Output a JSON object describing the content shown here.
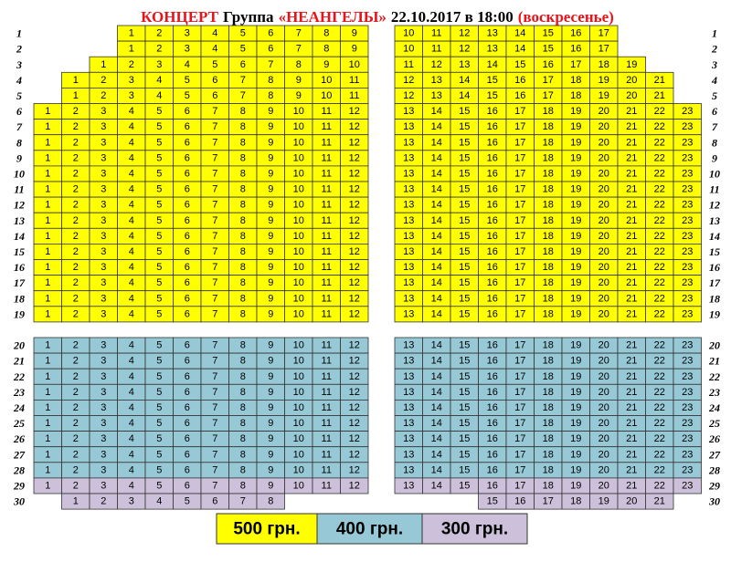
{
  "header": {
    "title": [
      {
        "text": "КОНЦЕРТ",
        "color": "#e8141b"
      },
      {
        "text": "Группа",
        "color": "#000000"
      },
      {
        "text": "«НЕАНГЕЛЫ»",
        "color": "#e8141b"
      },
      {
        "text": "22.10.2017 в 18:00",
        "color": "#000000"
      },
      {
        "text": "(воскресенье)",
        "color": "#e8141b"
      }
    ]
  },
  "rows": [
    {
      "label": "1",
      "color": "#ffff00",
      "left": [
        1,
        2,
        3,
        4,
        5,
        6,
        7,
        8,
        9
      ],
      "right": [
        10,
        11,
        12,
        13,
        14,
        15,
        16,
        17
      ]
    },
    {
      "label": "2",
      "color": "#ffff00",
      "left": [
        1,
        2,
        3,
        4,
        5,
        6,
        7,
        8,
        9
      ],
      "right": [
        10,
        11,
        12,
        13,
        14,
        15,
        16,
        17
      ]
    },
    {
      "label": "3",
      "color": "#ffff00",
      "left": [
        1,
        2,
        3,
        4,
        5,
        6,
        7,
        8,
        9,
        10
      ],
      "right": [
        11,
        12,
        13,
        14,
        15,
        16,
        17,
        18,
        19
      ]
    },
    {
      "label": "4",
      "color": "#ffff00",
      "left": [
        1,
        2,
        3,
        4,
        5,
        6,
        7,
        8,
        9,
        10,
        11
      ],
      "right": [
        12,
        13,
        14,
        15,
        16,
        17,
        18,
        19,
        20,
        21
      ]
    },
    {
      "label": "5",
      "color": "#ffff00",
      "left": [
        1,
        2,
        3,
        4,
        5,
        6,
        7,
        8,
        9,
        10,
        11
      ],
      "right": [
        12,
        13,
        14,
        15,
        16,
        17,
        18,
        19,
        20,
        21
      ]
    },
    {
      "label": "6",
      "color": "#ffff00",
      "left": [
        1,
        2,
        3,
        4,
        5,
        6,
        7,
        8,
        9,
        10,
        11,
        12
      ],
      "right": [
        13,
        14,
        15,
        16,
        17,
        18,
        19,
        20,
        21,
        22,
        23
      ]
    },
    {
      "label": "7",
      "color": "#ffff00",
      "left": [
        1,
        2,
        3,
        4,
        5,
        6,
        7,
        8,
        9,
        10,
        11,
        12
      ],
      "right": [
        13,
        14,
        15,
        16,
        17,
        18,
        19,
        20,
        21,
        22,
        23
      ]
    },
    {
      "label": "8",
      "color": "#ffff00",
      "left": [
        1,
        2,
        3,
        4,
        5,
        6,
        7,
        8,
        9,
        10,
        11,
        12
      ],
      "right": [
        13,
        14,
        15,
        16,
        17,
        18,
        19,
        20,
        21,
        22,
        23
      ]
    },
    {
      "label": "9",
      "color": "#ffff00",
      "left": [
        1,
        2,
        3,
        4,
        5,
        6,
        7,
        8,
        9,
        10,
        11,
        12
      ],
      "right": [
        13,
        14,
        15,
        16,
        17,
        18,
        19,
        20,
        21,
        22,
        23
      ]
    },
    {
      "label": "10",
      "color": "#ffff00",
      "left": [
        1,
        2,
        3,
        4,
        5,
        6,
        7,
        8,
        9,
        10,
        11,
        12
      ],
      "right": [
        13,
        14,
        15,
        16,
        17,
        18,
        19,
        20,
        21,
        22,
        23
      ]
    },
    {
      "label": "11",
      "color": "#ffff00",
      "left": [
        1,
        2,
        3,
        4,
        5,
        6,
        7,
        8,
        9,
        10,
        11,
        12
      ],
      "right": [
        13,
        14,
        15,
        16,
        17,
        18,
        19,
        20,
        21,
        22,
        23
      ]
    },
    {
      "label": "12",
      "color": "#ffff00",
      "left": [
        1,
        2,
        3,
        4,
        5,
        6,
        7,
        8,
        9,
        10,
        11,
        12
      ],
      "right": [
        13,
        14,
        15,
        16,
        17,
        18,
        19,
        20,
        21,
        22,
        23
      ]
    },
    {
      "label": "13",
      "color": "#ffff00",
      "left": [
        1,
        2,
        3,
        4,
        5,
        6,
        7,
        8,
        9,
        10,
        11,
        12
      ],
      "right": [
        13,
        14,
        15,
        16,
        17,
        18,
        19,
        20,
        21,
        22,
        23
      ]
    },
    {
      "label": "14",
      "color": "#ffff00",
      "left": [
        1,
        2,
        3,
        4,
        5,
        6,
        7,
        8,
        9,
        10,
        11,
        12
      ],
      "right": [
        13,
        14,
        15,
        16,
        17,
        18,
        19,
        20,
        21,
        22,
        23
      ]
    },
    {
      "label": "15",
      "color": "#ffff00",
      "left": [
        1,
        2,
        3,
        4,
        5,
        6,
        7,
        8,
        9,
        10,
        11,
        12
      ],
      "right": [
        13,
        14,
        15,
        16,
        17,
        18,
        19,
        20,
        21,
        22,
        23
      ]
    },
    {
      "label": "16",
      "color": "#ffff00",
      "left": [
        1,
        2,
        3,
        4,
        5,
        6,
        7,
        8,
        9,
        10,
        11,
        12
      ],
      "right": [
        13,
        14,
        15,
        16,
        17,
        18,
        19,
        20,
        21,
        22,
        23
      ]
    },
    {
      "label": "17",
      "color": "#ffff00",
      "left": [
        1,
        2,
        3,
        4,
        5,
        6,
        7,
        8,
        9,
        10,
        11,
        12
      ],
      "right": [
        13,
        14,
        15,
        16,
        17,
        18,
        19,
        20,
        21,
        22,
        23
      ]
    },
    {
      "label": "18",
      "color": "#ffff00",
      "left": [
        1,
        2,
        3,
        4,
        5,
        6,
        7,
        8,
        9,
        10,
        11,
        12
      ],
      "right": [
        13,
        14,
        15,
        16,
        17,
        18,
        19,
        20,
        21,
        22,
        23
      ]
    },
    {
      "label": "19",
      "color": "#ffff00",
      "left": [
        1,
        2,
        3,
        4,
        5,
        6,
        7,
        8,
        9,
        10,
        11,
        12
      ],
      "right": [
        13,
        14,
        15,
        16,
        17,
        18,
        19,
        20,
        21,
        22,
        23
      ]
    },
    {
      "label": "20",
      "color": "#96c8d6",
      "left": [
        1,
        2,
        3,
        4,
        5,
        6,
        7,
        8,
        9,
        10,
        11,
        12
      ],
      "right": [
        13,
        14,
        15,
        16,
        17,
        18,
        19,
        20,
        21,
        22,
        23
      ]
    },
    {
      "label": "21",
      "color": "#96c8d6",
      "left": [
        1,
        2,
        3,
        4,
        5,
        6,
        7,
        8,
        9,
        10,
        11,
        12
      ],
      "right": [
        13,
        14,
        15,
        16,
        17,
        18,
        19,
        20,
        21,
        22,
        23
      ]
    },
    {
      "label": "22",
      "color": "#96c8d6",
      "left": [
        1,
        2,
        3,
        4,
        5,
        6,
        7,
        8,
        9,
        10,
        11,
        12
      ],
      "right": [
        13,
        14,
        15,
        16,
        17,
        18,
        19,
        20,
        21,
        22,
        23
      ]
    },
    {
      "label": "23",
      "color": "#96c8d6",
      "left": [
        1,
        2,
        3,
        4,
        5,
        6,
        7,
        8,
        9,
        10,
        11,
        12
      ],
      "right": [
        13,
        14,
        15,
        16,
        17,
        18,
        19,
        20,
        21,
        22,
        23
      ]
    },
    {
      "label": "24",
      "color": "#96c8d6",
      "left": [
        1,
        2,
        3,
        4,
        5,
        6,
        7,
        8,
        9,
        10,
        11,
        12
      ],
      "right": [
        13,
        14,
        15,
        16,
        17,
        18,
        19,
        20,
        21,
        22,
        23
      ]
    },
    {
      "label": "25",
      "color": "#96c8d6",
      "left": [
        1,
        2,
        3,
        4,
        5,
        6,
        7,
        8,
        9,
        10,
        11,
        12
      ],
      "right": [
        13,
        14,
        15,
        16,
        17,
        18,
        19,
        20,
        21,
        22,
        23
      ]
    },
    {
      "label": "26",
      "color": "#96c8d6",
      "left": [
        1,
        2,
        3,
        4,
        5,
        6,
        7,
        8,
        9,
        10,
        11,
        12
      ],
      "right": [
        13,
        14,
        15,
        16,
        17,
        18,
        19,
        20,
        21,
        22,
        23
      ]
    },
    {
      "label": "27",
      "color": "#96c8d6",
      "left": [
        1,
        2,
        3,
        4,
        5,
        6,
        7,
        8,
        9,
        10,
        11,
        12
      ],
      "right": [
        13,
        14,
        15,
        16,
        17,
        18,
        19,
        20,
        21,
        22,
        23
      ]
    },
    {
      "label": "28",
      "color": "#96c8d6",
      "left": [
        1,
        2,
        3,
        4,
        5,
        6,
        7,
        8,
        9,
        10,
        11,
        12
      ],
      "right": [
        13,
        14,
        15,
        16,
        17,
        18,
        19,
        20,
        21,
        22,
        23
      ]
    },
    {
      "label": "29",
      "color": "#ccc0da",
      "left": [
        1,
        2,
        3,
        4,
        5,
        6,
        7,
        8,
        9,
        10,
        11,
        12
      ],
      "right": [
        13,
        14,
        15,
        16,
        17,
        18,
        19,
        20,
        21,
        22,
        23
      ]
    },
    {
      "label": "30",
      "color": "#ccc0da",
      "left": [
        1,
        2,
        3,
        4,
        5,
        6,
        7,
        8
      ],
      "right": [
        15,
        16,
        17,
        18,
        19,
        20,
        21
      ]
    }
  ],
  "legend": [
    {
      "label": "500 грн.",
      "color": "#ffff00"
    },
    {
      "label": "400 грн.",
      "color": "#96c8d6"
    },
    {
      "label": "300 грн.",
      "color": "#ccc0da"
    }
  ]
}
